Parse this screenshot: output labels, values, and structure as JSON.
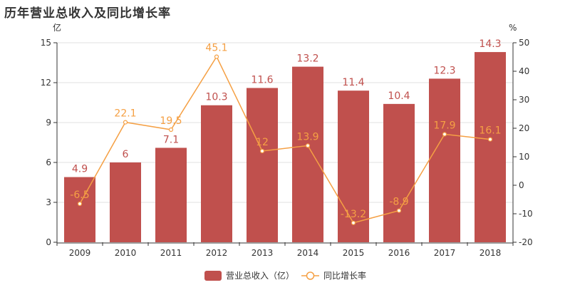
{
  "title": "历年营业总收入及同比增长率",
  "chart_data": {
    "type": "bar",
    "categories": [
      "2009",
      "2010",
      "2011",
      "2012",
      "2013",
      "2014",
      "2015",
      "2016",
      "2017",
      "2018"
    ],
    "series": [
      {
        "name": "营业总收入（亿）",
        "type": "bar",
        "axis": "left",
        "values": [
          4.9,
          6,
          7.1,
          10.3,
          11.6,
          13.2,
          11.4,
          10.4,
          12.3,
          14.3
        ],
        "labels": [
          "4.9",
          "6",
          "7.1",
          "10.3",
          "11.6",
          "13.2",
          "11.4",
          "10.4",
          "12.3",
          "14.3"
        ]
      },
      {
        "name": "同比增长率",
        "type": "line",
        "axis": "right",
        "values": [
          -6.5,
          22.1,
          19.5,
          45.1,
          12,
          13.9,
          -13.2,
          -8.9,
          17.9,
          16.1
        ],
        "labels": [
          "-6.5",
          "22.1",
          "19.5",
          "45.1",
          "12",
          "13.9",
          "-13.2",
          "-8.9",
          "17.9",
          "16.1"
        ]
      }
    ],
    "y_left": {
      "unit": "亿",
      "ylim": [
        0,
        15
      ],
      "ticks": [
        "0",
        "3",
        "6",
        "9",
        "12",
        "15"
      ]
    },
    "y_right": {
      "unit": "%",
      "ylim": [
        -20,
        50
      ],
      "ticks": [
        "-20",
        "-10",
        "0",
        "10",
        "20",
        "30",
        "40",
        "50"
      ]
    },
    "grid": true,
    "legend": "bottom-center",
    "colors": {
      "bar": "#c0504d",
      "line": "#f5a044",
      "bar_label": "#c0504d",
      "line_label": "#f5a044"
    }
  }
}
